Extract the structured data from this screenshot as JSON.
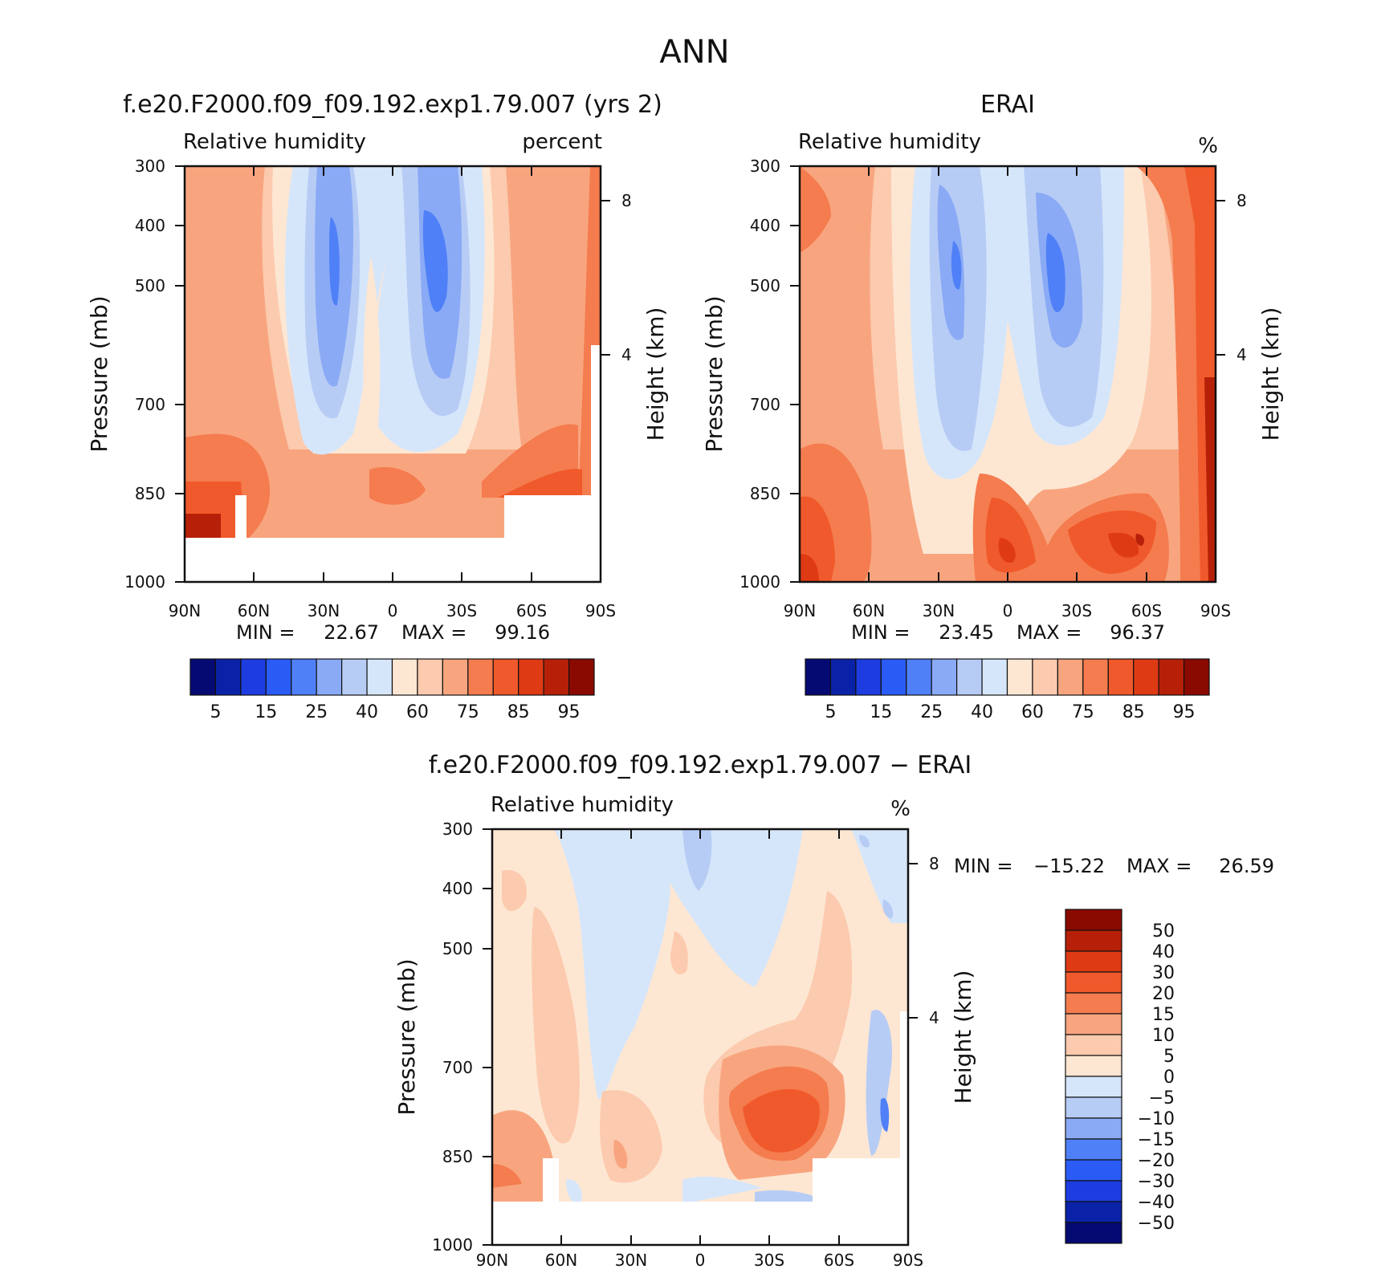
{
  "figure": {
    "title": "ANN"
  },
  "chart_data": [
    {
      "type": "contour",
      "title": "f.e20.F2000.f09_f09.192.exp1.79.007 (yrs 2)",
      "left_label": "Relative humidity",
      "right_label": "percent",
      "ylabel": "Pressure (mb)",
      "ylabel2": "Height (km)",
      "x_ticks": [
        "90N",
        "60N",
        "30N",
        "0",
        "30S",
        "60S",
        "90S"
      ],
      "y_ticks": [
        "300",
        "400",
        "500",
        "700",
        "850",
        "1000"
      ],
      "y2_ticks": [
        "8",
        "4"
      ],
      "ylim": [
        1000,
        300
      ],
      "min_label": "MIN =",
      "min": "22.67",
      "max_label": "MAX =",
      "max": "99.16",
      "colorbar": {
        "colors": [
          "#050a73",
          "#0a22a8",
          "#1d3de0",
          "#2a5cf5",
          "#4f80f7",
          "#8aaaf5",
          "#b7ccf5",
          "#d6e6fa",
          "#fde7d3",
          "#fccaae",
          "#f8a57f",
          "#f47c4f",
          "#f0592b",
          "#de3a14",
          "#b72008",
          "#8a0a02"
        ],
        "labels": [
          "5",
          "15",
          "25",
          "40",
          "60",
          "75",
          "85",
          "95"
        ]
      }
    },
    {
      "type": "contour",
      "title": "ERAI",
      "left_label": "Relative humidity",
      "right_label": "%",
      "ylabel": "Pressure (mb)",
      "ylabel2": "Height (km)",
      "x_ticks": [
        "90N",
        "60N",
        "30N",
        "0",
        "30S",
        "60S",
        "90S"
      ],
      "y_ticks": [
        "300",
        "400",
        "500",
        "700",
        "850",
        "1000"
      ],
      "y2_ticks": [
        "8",
        "4"
      ],
      "ylim": [
        1000,
        300
      ],
      "min_label": "MIN =",
      "min": "23.45",
      "max_label": "MAX =",
      "max": "96.37",
      "colorbar": {
        "colors": [
          "#050a73",
          "#0a22a8",
          "#1d3de0",
          "#2a5cf5",
          "#4f80f7",
          "#8aaaf5",
          "#b7ccf5",
          "#d6e6fa",
          "#fde7d3",
          "#fccaae",
          "#f8a57f",
          "#f47c4f",
          "#f0592b",
          "#de3a14",
          "#b72008",
          "#8a0a02"
        ],
        "labels": [
          "5",
          "15",
          "25",
          "40",
          "60",
          "75",
          "85",
          "95"
        ]
      }
    },
    {
      "type": "contour",
      "title": "f.e20.F2000.f09_f09.192.exp1.79.007 − ERAI",
      "left_label": "Relative humidity",
      "right_label": "%",
      "ylabel": "Pressure (mb)",
      "ylabel2": "Height (km)",
      "x_ticks": [
        "90N",
        "60N",
        "30N",
        "0",
        "30S",
        "60S",
        "90S"
      ],
      "y_ticks": [
        "300",
        "400",
        "500",
        "700",
        "850",
        "1000"
      ],
      "y2_ticks": [
        "8",
        "4"
      ],
      "ylim": [
        1000,
        300
      ],
      "min_label": "MIN =",
      "min": "−15.22",
      "max_label": "MAX =",
      "max": "26.59",
      "colorbar": {
        "colors": [
          "#8a0a02",
          "#b72008",
          "#de3a14",
          "#f0592b",
          "#f47c4f",
          "#f8a57f",
          "#fccaae",
          "#fde7d3",
          "#d6e6fa",
          "#b7ccf5",
          "#8aaaf5",
          "#4f80f7",
          "#2a5cf5",
          "#1d3de0",
          "#0a22a8",
          "#050a73"
        ],
        "labels": [
          "50",
          "40",
          "30",
          "20",
          "15",
          "10",
          "5",
          "0",
          "−5",
          "−10",
          "−15",
          "−20",
          "−30",
          "−40",
          "−50"
        ]
      }
    }
  ]
}
